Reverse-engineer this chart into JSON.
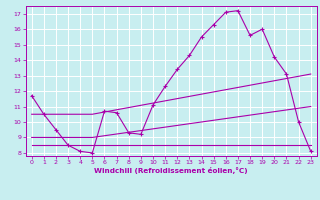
{
  "xlabel": "Windchill (Refroidissement éolien,°C)",
  "xlim": [
    -0.5,
    23.5
  ],
  "ylim": [
    7.8,
    17.5
  ],
  "xticks": [
    0,
    1,
    2,
    3,
    4,
    5,
    6,
    7,
    8,
    9,
    10,
    11,
    12,
    13,
    14,
    15,
    16,
    17,
    18,
    19,
    20,
    21,
    22,
    23
  ],
  "yticks": [
    8,
    9,
    10,
    11,
    12,
    13,
    14,
    15,
    16,
    17
  ],
  "background_color": "#c8eef0",
  "line_color": "#aa00aa",
  "grid_color": "#ffffff",
  "line1_x": [
    0,
    1,
    2,
    3,
    4,
    5,
    6,
    7,
    8,
    9,
    10,
    11,
    12,
    13,
    14,
    15,
    16,
    17,
    18,
    19,
    20,
    21,
    22,
    23
  ],
  "line1_y": [
    11.7,
    10.5,
    9.5,
    8.5,
    8.1,
    8.0,
    10.7,
    10.6,
    9.3,
    9.2,
    11.1,
    12.3,
    13.4,
    14.3,
    15.5,
    16.3,
    17.1,
    17.2,
    15.6,
    16.0,
    14.2,
    13.1,
    10.0,
    8.1
  ],
  "line2_x": [
    0,
    1,
    2,
    3,
    4,
    5,
    6,
    7,
    8,
    9,
    10,
    11,
    12,
    13,
    14,
    15,
    16,
    17,
    18,
    19,
    20,
    21,
    22,
    23
  ],
  "line2_y": [
    8.5,
    8.5,
    8.5,
    8.5,
    8.5,
    8.5,
    8.5,
    8.5,
    8.5,
    8.5,
    8.5,
    8.5,
    8.5,
    8.5,
    8.5,
    8.5,
    8.5,
    8.5,
    8.5,
    8.5,
    8.5,
    8.5,
    8.5,
    8.5
  ],
  "line3_x": [
    0,
    5,
    23
  ],
  "line3_y": [
    10.5,
    10.5,
    13.1
  ],
  "line4_x": [
    0,
    5,
    23
  ],
  "line4_y": [
    9.0,
    9.0,
    11.0
  ]
}
